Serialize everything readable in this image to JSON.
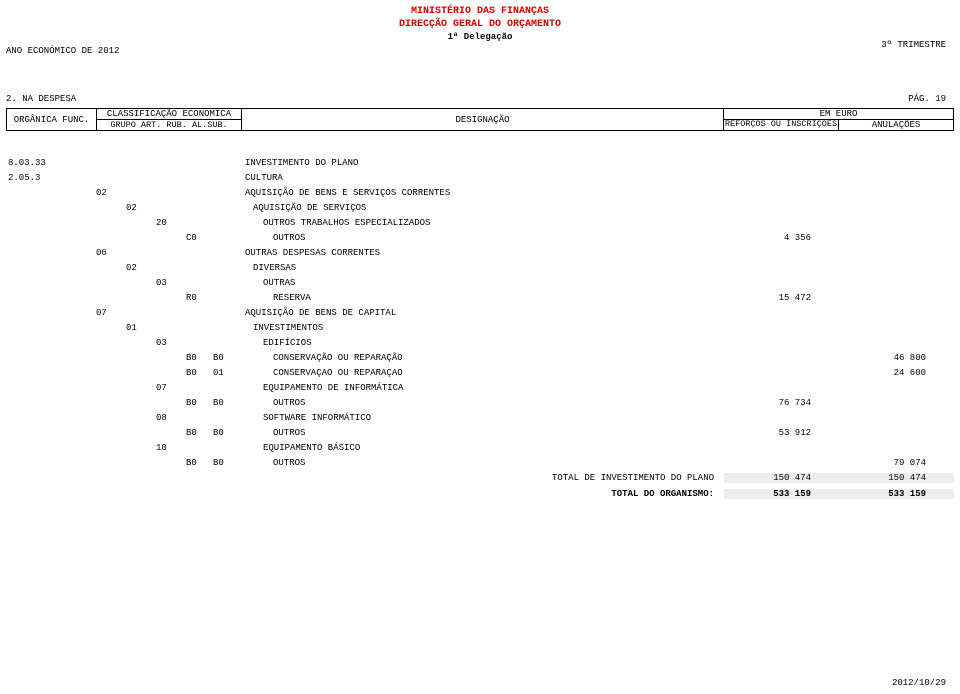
{
  "header": {
    "title1": "MINISTÉRIO DAS FINANÇAS",
    "title2": "DIRECÇÃO GERAL DO ORÇAMENTO",
    "title3": "1ª Delegação",
    "top_left": "ANO ECONÓMICO DE 2012",
    "top_right": "3º TRIMESTRE"
  },
  "section": {
    "label": "2. NA DESPESA",
    "page": "PÁG.  19"
  },
  "table_header": {
    "organica": "ORGÂNICA FUNC.",
    "class": "CLASSIFICAÇÃO ECONÓMICA",
    "grupo_line": "GRUPO ART. RUB. AL.SUB.",
    "desig": "DESIGNAÇÃO",
    "em_euro": "EM EURO",
    "reforcos": "REFORÇOS OU INSCRIÇÕES",
    "anul": "ANULAÇÕES"
  },
  "rows": [
    {
      "organica": "8.03.33",
      "grupo": "",
      "art": "",
      "rub": "",
      "al": "",
      "sub": "",
      "desig": "INVESTIMENTO DO PLANO",
      "indent": 1,
      "ref": "",
      "anul": ""
    },
    {
      "organica": "     2.05.3",
      "grupo": "",
      "art": "",
      "rub": "",
      "al": "",
      "sub": "",
      "desig": "CULTURA",
      "indent": 1,
      "ref": "",
      "anul": ""
    },
    {
      "organica": "",
      "grupo": "02",
      "art": "",
      "rub": "",
      "al": "",
      "sub": "",
      "desig": "AQUISIÇÃO DE BENS E SERVIÇOS CORRENTES",
      "indent": 1,
      "ref": "",
      "anul": ""
    },
    {
      "organica": "",
      "grupo": "",
      "art": "02",
      "rub": "",
      "al": "",
      "sub": "",
      "desig": "AQUISIÇÃO DE SERVIÇOS",
      "indent": 2,
      "ref": "",
      "anul": ""
    },
    {
      "organica": "",
      "grupo": "",
      "art": "",
      "rub": "20",
      "al": "",
      "sub": "",
      "desig": "OUTROS TRABALHOS ESPECIALIZADOS",
      "indent": 3,
      "ref": "",
      "anul": ""
    },
    {
      "organica": "",
      "grupo": "",
      "art": "",
      "rub": "",
      "al": "C0",
      "sub": "",
      "desig": "OUTROS",
      "indent": 4,
      "ref": "4 356",
      "anul": ""
    },
    {
      "organica": "",
      "grupo": "06",
      "art": "",
      "rub": "",
      "al": "",
      "sub": "",
      "desig": "OUTRAS DESPESAS CORRENTES",
      "indent": 1,
      "ref": "",
      "anul": ""
    },
    {
      "organica": "",
      "grupo": "",
      "art": "02",
      "rub": "",
      "al": "",
      "sub": "",
      "desig": "DIVERSAS",
      "indent": 2,
      "ref": "",
      "anul": ""
    },
    {
      "organica": "",
      "grupo": "",
      "art": "",
      "rub": "03",
      "al": "",
      "sub": "",
      "desig": "OUTRAS",
      "indent": 3,
      "ref": "",
      "anul": ""
    },
    {
      "organica": "",
      "grupo": "",
      "art": "",
      "rub": "",
      "al": "R0",
      "sub": "",
      "desig": "RESERVA",
      "indent": 4,
      "ref": "15 472",
      "anul": ""
    },
    {
      "organica": "",
      "grupo": "07",
      "art": "",
      "rub": "",
      "al": "",
      "sub": "",
      "desig": "AQUISIÇÃO DE BENS DE CAPITAL",
      "indent": 1,
      "ref": "",
      "anul": ""
    },
    {
      "organica": "",
      "grupo": "",
      "art": "01",
      "rub": "",
      "al": "",
      "sub": "",
      "desig": "INVESTIMENTOS",
      "indent": 2,
      "ref": "",
      "anul": ""
    },
    {
      "organica": "",
      "grupo": "",
      "art": "",
      "rub": "03",
      "al": "",
      "sub": "",
      "desig": "EDIFÍCIOS",
      "indent": 3,
      "ref": "",
      "anul": ""
    },
    {
      "organica": "",
      "grupo": "",
      "art": "",
      "rub": "",
      "al": "B0",
      "sub": "B0",
      "desig": "CONSERVAÇÃO OU REPARAÇÃO",
      "indent": 4,
      "ref": "",
      "anul": "46 800"
    },
    {
      "organica": "",
      "grupo": "",
      "art": "",
      "rub": "",
      "al": "B0",
      "sub": "01",
      "desig": "CONSERVAÇAO OU REPARAÇAO",
      "indent": 4,
      "ref": "",
      "anul": "24 600"
    },
    {
      "organica": "",
      "grupo": "",
      "art": "",
      "rub": "07",
      "al": "",
      "sub": "",
      "desig": "EQUIPAMENTO DE INFORMÁTICA",
      "indent": 3,
      "ref": "",
      "anul": ""
    },
    {
      "organica": "",
      "grupo": "",
      "art": "",
      "rub": "",
      "al": "B0",
      "sub": "B0",
      "desig": "OUTROS",
      "indent": 4,
      "ref": "76 734",
      "anul": ""
    },
    {
      "organica": "",
      "grupo": "",
      "art": "",
      "rub": "08",
      "al": "",
      "sub": "",
      "desig": "SOFTWARE INFORMÁTICO",
      "indent": 3,
      "ref": "",
      "anul": ""
    },
    {
      "organica": "",
      "grupo": "",
      "art": "",
      "rub": "",
      "al": "B0",
      "sub": "B0",
      "desig": "OUTROS",
      "indent": 4,
      "ref": "53 912",
      "anul": ""
    },
    {
      "organica": "",
      "grupo": "",
      "art": "",
      "rub": "10",
      "al": "",
      "sub": "",
      "desig": "EQUIPAMENTO BÁSICO",
      "indent": 3,
      "ref": "",
      "anul": ""
    },
    {
      "organica": "",
      "grupo": "",
      "art": "",
      "rub": "",
      "al": "B0",
      "sub": "B0",
      "desig": "OUTROS",
      "indent": 4,
      "ref": "",
      "anul": "79 074"
    }
  ],
  "totals": [
    {
      "label": "TOTAL DE INVESTIMENTO DO PLANO",
      "ref": "150 474",
      "anul": "150 474",
      "bold": false
    },
    {
      "label": "TOTAL DO ORGANISMO:",
      "ref": "533 159",
      "anul": "533 159",
      "bold": true
    }
  ],
  "footer": {
    "date": "2012/10/29"
  }
}
